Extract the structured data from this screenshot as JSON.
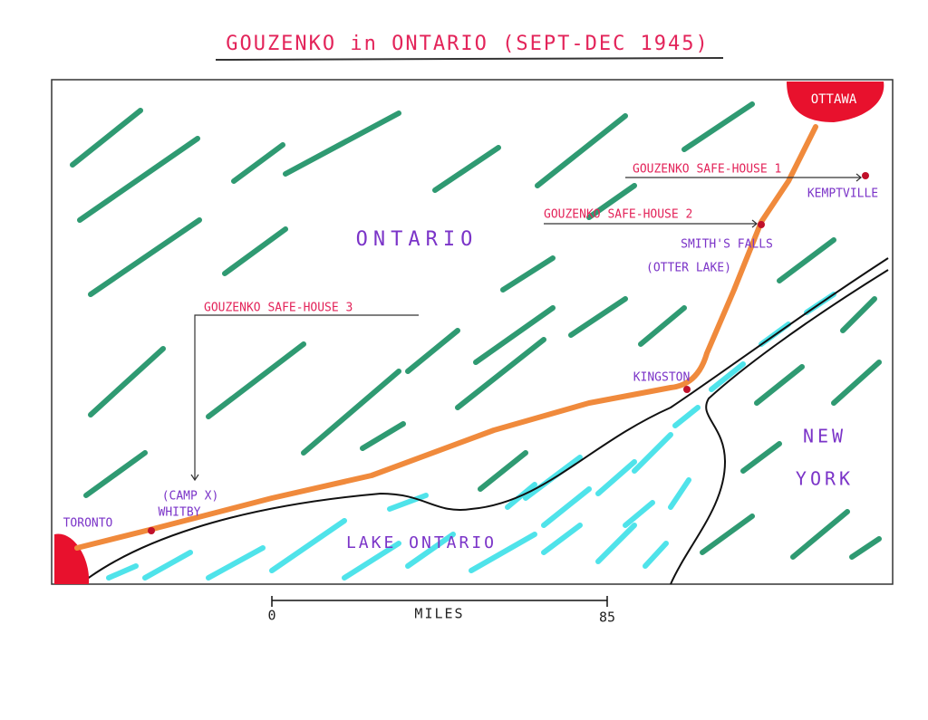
{
  "title": "GOUZENKO in ONTARIO (SEPT-DEC 1945)",
  "places": {
    "ottawa": "OTTAWA",
    "kemptville": "KEMPTVILLE",
    "smiths_falls": "SMITH'S FALLS",
    "otter_lake": "(OTTER LAKE)",
    "kingston": "KINGSTON",
    "camp_x": "(CAMP X)",
    "whitby": "WHITBY",
    "toronto": "TORONTO"
  },
  "safe_houses": [
    "GOUZENKO SAFE-HOUSE 1",
    "GOUZENKO SAFE-HOUSE 2",
    "GOUZENKO SAFE-HOUSE 3"
  ],
  "regions": {
    "ontario": "ONTARIO",
    "new_york": [
      "NEW",
      "YORK"
    ],
    "lake": "LAKE ONTARIO"
  },
  "scale": {
    "start": 0,
    "label": "MILES",
    "end": 85
  }
}
